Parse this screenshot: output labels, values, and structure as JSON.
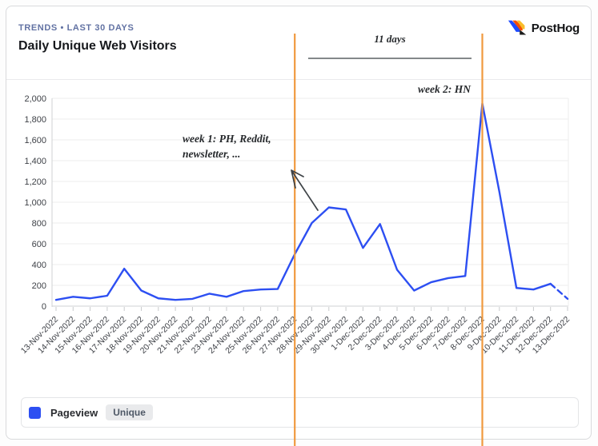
{
  "header": {
    "eyebrow": "TRENDS • LAST 30 DAYS",
    "title": "Daily Unique Web Visitors",
    "logo_text": "PostHog"
  },
  "legend": {
    "series": "Pageview",
    "badge": "Unique"
  },
  "annotations": {
    "range_label": "11 days",
    "week1_line1": "week 1: PH, Reddit,",
    "week1_line2": "newsletter, ...",
    "week2": "week 2: HN"
  },
  "colors": {
    "accent": "#2d4ff2",
    "highlight": "#f0993e",
    "grid": "#ededee",
    "axis": "#cfd1d3",
    "axis_label": "#3e4147",
    "logo_blue": "#1d4aff",
    "logo_red": "#f54e00",
    "logo_yellow": "#f9bd2b"
  },
  "chart_data": {
    "type": "line",
    "title": "Daily Unique Web Visitors",
    "x": [
      "13-Nov-2022",
      "14-Nov-2022",
      "15-Nov-2022",
      "16-Nov-2022",
      "17-Nov-2022",
      "18-Nov-2022",
      "19-Nov-2022",
      "20-Nov-2022",
      "21-Nov-2022",
      "22-Nov-2022",
      "23-Nov-2022",
      "24-Nov-2022",
      "25-Nov-2022",
      "26-Nov-2022",
      "27-Nov-2022",
      "28-Nov-2022",
      "29-Nov-2022",
      "30-Nov-2022",
      "1-Dec-2022",
      "2-Dec-2022",
      "3-Dec-2022",
      "4-Dec-2022",
      "5-Dec-2022",
      "6-Dec-2022",
      "7-Dec-2022",
      "8-Dec-2022",
      "9-Dec-2022",
      "10-Dec-2022",
      "11-Dec-2022",
      "12-Dec-2022",
      "13-Dec-2022"
    ],
    "series": [
      {
        "name": "Pageview (Unique)",
        "values": [
          60,
          90,
          75,
          100,
          360,
          150,
          75,
          60,
          70,
          120,
          90,
          145,
          160,
          165,
          500,
          800,
          950,
          930,
          560,
          790,
          350,
          150,
          230,
          270,
          290,
          1950,
          1100,
          175,
          160,
          215,
          70
        ]
      }
    ],
    "ylim": [
      0,
      2000
    ],
    "ytick_step": 200,
    "grid": true,
    "legend_position": "bottom",
    "dashed_last_segment": true,
    "highlights": {
      "start_date": "27-Nov-2022",
      "end_date": "8-Dec-2022",
      "label": "11 days"
    }
  }
}
